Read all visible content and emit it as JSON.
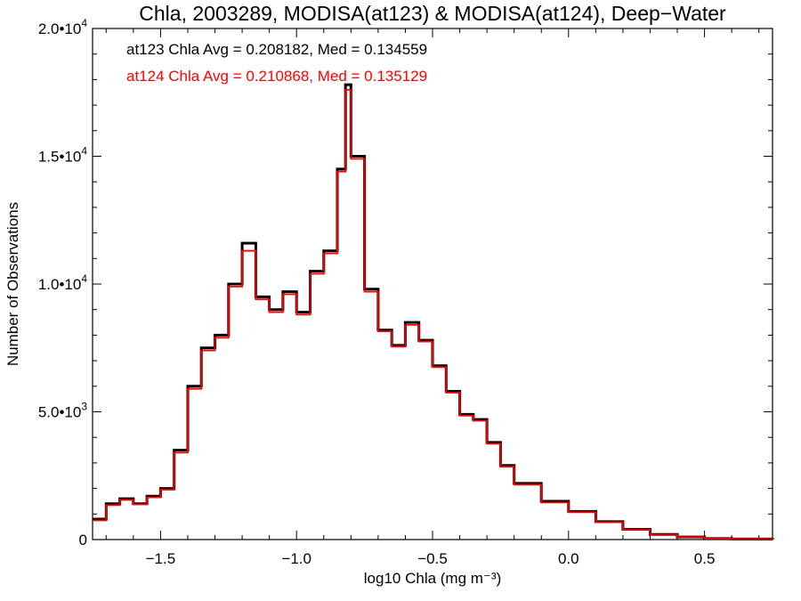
{
  "chart_data": {
    "type": "line",
    "title": "Chla, 2003289, MODISA(at123) & MODISA(at124), Deep−Water",
    "xlabel": "log10 Chla (mg m⁻³)",
    "ylabel": "Number of Observations",
    "xlim": [
      -1.75,
      0.75
    ],
    "ylim": [
      0,
      20000
    ],
    "grid": false,
    "x_ticks": [
      {
        "value": -1.5,
        "label": "−1.5"
      },
      {
        "value": -1.0,
        "label": "−1.0"
      },
      {
        "value": -0.5,
        "label": "−0.5"
      },
      {
        "value": 0.0,
        "label": "0.0"
      },
      {
        "value": 0.5,
        "label": "0.5"
      }
    ],
    "y_ticks": [
      {
        "value": 0,
        "mantissa": "0",
        "exponent": ""
      },
      {
        "value": 5000,
        "mantissa": "5.0•10",
        "exponent": "3"
      },
      {
        "value": 10000,
        "mantissa": "1.0•10",
        "exponent": "4"
      },
      {
        "value": 15000,
        "mantissa": "1.5•10",
        "exponent": "4"
      },
      {
        "value": 20000,
        "mantissa": "2.0•10",
        "exponent": "4"
      }
    ],
    "annotations": [
      {
        "text": "at123 Chla Avg = 0.208182, Med = 0.134559",
        "color": "#000000"
      },
      {
        "text": "at124 Chla Avg = 0.210868, Med = 0.135129",
        "color": "#ff0000"
      }
    ],
    "series": [
      {
        "color": "#000000",
        "x": [
          -1.75,
          -1.7,
          -1.65,
          -1.6,
          -1.55,
          -1.5,
          -1.45,
          -1.4,
          -1.35,
          -1.3,
          -1.25,
          -1.2,
          -1.15,
          -1.1,
          -1.05,
          -1.0,
          -0.95,
          -0.9,
          -0.85,
          -0.82,
          -0.8,
          -0.75,
          -0.7,
          -0.65,
          -0.6,
          -0.55,
          -0.5,
          -0.45,
          -0.4,
          -0.35,
          -0.3,
          -0.25,
          -0.2,
          -0.1,
          0.0,
          0.1,
          0.2,
          0.3,
          0.4,
          0.5,
          0.6,
          0.75
        ],
        "y": [
          800,
          1400,
          1600,
          1400,
          1700,
          2000,
          3500,
          6000,
          7500,
          8000,
          10000,
          11600,
          9500,
          9000,
          9700,
          8900,
          10500,
          11300,
          14500,
          17800,
          15000,
          9800,
          8200,
          7600,
          8500,
          7800,
          6800,
          5800,
          4900,
          4700,
          3800,
          2900,
          2200,
          1500,
          1100,
          700,
          400,
          200,
          100,
          40,
          20,
          0
        ]
      },
      {
        "color": "#ff0000",
        "x": [
          -1.75,
          -1.7,
          -1.65,
          -1.6,
          -1.55,
          -1.5,
          -1.45,
          -1.4,
          -1.35,
          -1.3,
          -1.25,
          -1.2,
          -1.15,
          -1.1,
          -1.05,
          -1.0,
          -0.95,
          -0.9,
          -0.85,
          -0.82,
          -0.8,
          -0.75,
          -0.7,
          -0.65,
          -0.6,
          -0.55,
          -0.5,
          -0.45,
          -0.4,
          -0.35,
          -0.3,
          -0.25,
          -0.2,
          -0.1,
          0.0,
          0.1,
          0.2,
          0.3,
          0.4,
          0.5,
          0.6,
          0.75
        ],
        "y": [
          750,
          1350,
          1550,
          1380,
          1650,
          1950,
          3400,
          5900,
          7400,
          7900,
          9900,
          11300,
          9400,
          8900,
          9600,
          8800,
          10400,
          11200,
          14400,
          17600,
          14900,
          9700,
          8150,
          7550,
          8400,
          7750,
          6750,
          5750,
          4850,
          4650,
          3750,
          2850,
          2150,
          1450,
          1070,
          680,
          390,
          190,
          95,
          40,
          20,
          0
        ]
      }
    ]
  }
}
